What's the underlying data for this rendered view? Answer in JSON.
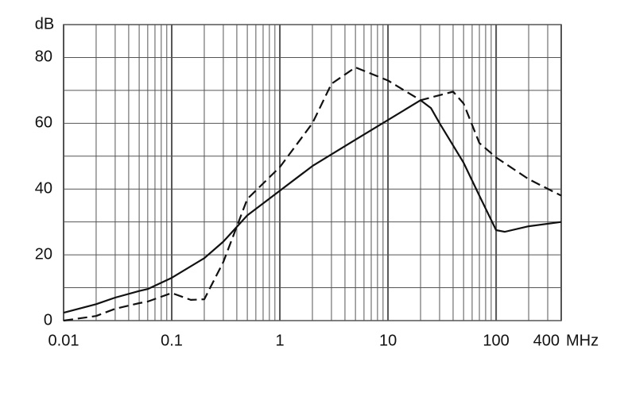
{
  "chart_data": {
    "type": "line",
    "ylabel": "dB",
    "xlabel": "MHz",
    "xscale": "log",
    "grid": true,
    "xlim": [
      0.01,
      400
    ],
    "xticks": [
      0.01,
      0.1,
      1,
      10,
      100,
      400
    ],
    "ylim": [
      0,
      90
    ],
    "yticks": [
      0,
      20,
      40,
      60,
      80
    ],
    "series": [
      {
        "color": "#111111",
        "dash": false,
        "x": [
          0.01,
          0.02,
          0.03,
          0.05,
          0.06,
          0.1,
          0.2,
          0.3,
          0.5,
          1,
          2,
          5,
          10,
          20,
          25,
          30,
          50,
          70,
          100,
          120,
          200,
          400
        ],
        "values": [
          2.4,
          5,
          7,
          9,
          9.6,
          13,
          19,
          24,
          32,
          39.5,
          47,
          55,
          61,
          67,
          64.6,
          60,
          48,
          38,
          27.5,
          27,
          28.7,
          30
        ]
      },
      {
        "color": "#111111",
        "dash": true,
        "x": [
          0.01,
          0.02,
          0.03,
          0.05,
          0.06,
          0.1,
          0.15,
          0.2,
          0.3,
          0.5,
          1,
          2,
          3,
          5,
          10,
          20,
          40,
          50,
          70,
          100,
          200,
          400
        ],
        "values": [
          0,
          1.4,
          3.6,
          5.3,
          5.8,
          8.4,
          6.3,
          6.5,
          17.8,
          37,
          46.7,
          60,
          72,
          77,
          73,
          67,
          69.6,
          66,
          54,
          49.6,
          43,
          38
        ]
      }
    ]
  }
}
